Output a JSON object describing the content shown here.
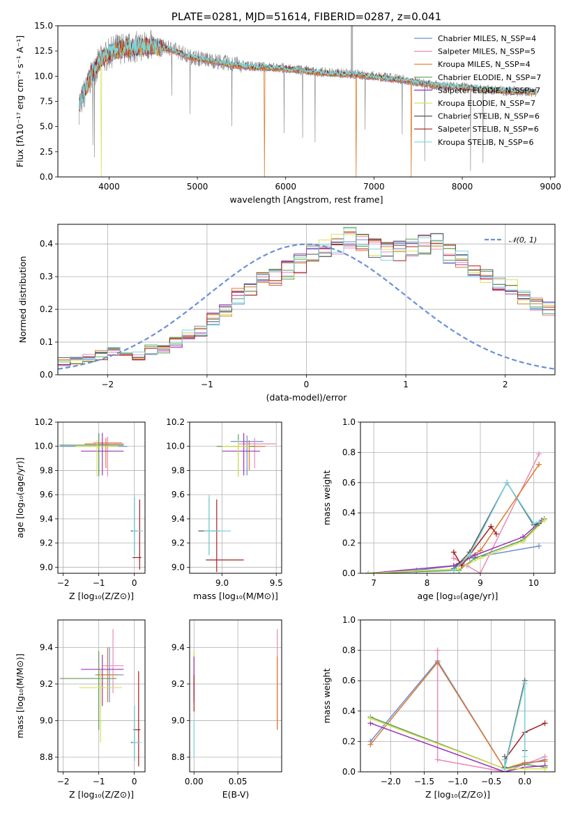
{
  "chart_data": [
    {
      "id": "spectrum",
      "type": "line",
      "title": "PLATE=0281, MJD=51614, FIBERID=0287, z=0.041",
      "xlabel": "wavelength [Angstrom, rest frame]",
      "ylabel": "Flux [fλ10⁻¹⁷ erg cm⁻² s⁻¹ A⁻¹]",
      "xlim": [
        3420,
        9050
      ],
      "ylim": [
        0,
        15
      ],
      "xticks": [
        4000,
        5000,
        6000,
        7000,
        8000,
        9000
      ],
      "yticks": [
        0.0,
        2.5,
        5.0,
        7.5,
        10.0,
        12.5,
        15.0
      ],
      "grid": false,
      "legend": "right",
      "observed": {
        "x": [
          3650,
          3700,
          3800,
          3900,
          4000,
          4100,
          4200,
          4300,
          4400,
          4500,
          4600,
          4700,
          4800,
          4900,
          5000,
          5200,
          5400,
          5600,
          5800,
          6000,
          6200,
          6400,
          6600,
          6800,
          7000,
          7200,
          7400,
          7600,
          7800,
          8000,
          8200,
          8400,
          8600,
          8800
        ],
        "y": [
          6.5,
          7.8,
          10.0,
          11.5,
          12.2,
          12.8,
          12.7,
          12.9,
          13.0,
          13.0,
          12.9,
          12.7,
          12.4,
          12.0,
          11.8,
          11.5,
          11.2,
          11.0,
          10.9,
          10.8,
          10.6,
          10.4,
          10.3,
          10.2,
          10.0,
          9.8,
          9.6,
          9.2,
          9.0,
          8.9,
          8.7,
          8.6,
          8.5,
          8.4
        ]
      },
      "series": [
        {
          "name": "Chabrier MILES, N_SSP=4",
          "color": "#6b8bd6"
        },
        {
          "name": "Salpeter MILES, N_SSP=5",
          "color": "#e88ab9"
        },
        {
          "name": "Kroupa MILES, N_SSP=4",
          "color": "#dc7a2a"
        },
        {
          "name": "Chabrier ELODIE, N_SSP=7",
          "color": "#5f9a55"
        },
        {
          "name": "Salpeter ELODIE, N_SSP=7",
          "color": "#9b33b8"
        },
        {
          "name": "Kroupa ELODIE, N_SSP=7",
          "color": "#d8e257"
        },
        {
          "name": "Chabrier STELIB, N_SSP=6",
          "color": "#555555"
        },
        {
          "name": "Salpeter STELIB, N_SSP=6",
          "color": "#a61d1d"
        },
        {
          "name": "Kroupa STELIB, N_SSP=6",
          "color": "#7bd6de"
        }
      ],
      "model": {
        "x": [
          3650,
          3700,
          3800,
          3900,
          4000,
          4100,
          4200,
          4300,
          4400,
          4500,
          4600,
          4700,
          4800,
          4900,
          5000,
          5200,
          5400,
          5600,
          5800,
          6000,
          6200,
          6400,
          6600,
          6800,
          7000,
          7200,
          7400,
          7600,
          7800,
          8000,
          8200,
          8400,
          8600,
          8800
        ],
        "y": [
          6.8,
          8.0,
          10.2,
          11.6,
          12.3,
          12.6,
          12.7,
          12.8,
          12.9,
          12.9,
          12.8,
          12.6,
          12.3,
          11.9,
          11.7,
          11.4,
          11.1,
          10.9,
          10.8,
          10.7,
          10.5,
          10.3,
          10.2,
          10.1,
          9.9,
          9.7,
          9.5,
          9.2,
          9.0,
          8.9,
          8.7,
          8.6,
          8.5,
          8.4
        ]
      }
    },
    {
      "id": "residuals",
      "type": "line",
      "xlabel": "(data-model)/error",
      "ylabel": "Normed distribution",
      "xlim": [
        -2.5,
        2.5
      ],
      "ylim": [
        0,
        0.46
      ],
      "xticks": [
        -2,
        -1,
        0,
        1,
        2
      ],
      "yticks": [
        0.0,
        0.1,
        0.2,
        0.3,
        0.4
      ],
      "grid": true,
      "legend": "top-right",
      "gaussian_label": "𝒩(0, 1)",
      "histogram": {
        "bin_width": 0.125,
        "x_start": -2.5,
        "values": [
          0.04,
          0.04,
          0.055,
          0.06,
          0.07,
          0.07,
          0.06,
          0.075,
          0.08,
          0.1,
          0.125,
          0.13,
          0.17,
          0.2,
          0.24,
          0.26,
          0.29,
          0.3,
          0.32,
          0.34,
          0.37,
          0.39,
          0.4,
          0.42,
          0.4,
          0.39,
          0.38,
          0.38,
          0.39,
          0.4,
          0.4,
          0.37,
          0.35,
          0.32,
          0.3,
          0.28,
          0.27,
          0.24,
          0.22,
          0.2,
          0.21,
          0.19,
          0.17,
          0.14,
          0.13,
          0.11,
          0.09,
          0.08,
          0.065,
          0.055,
          0.05,
          0.045,
          0.04,
          0.04
        ]
      }
    },
    {
      "id": "age-vs-Z",
      "type": "scatter",
      "xlabel": "Z [log₁₀(Z/Z⊙)]",
      "ylabel": "age  [log₁₀(age/yr)]",
      "xlim": [
        -2.15,
        0.3
      ],
      "ylim": [
        8.95,
        10.2
      ],
      "xticks": [
        -2,
        -1,
        0
      ],
      "yticks": [
        9.0,
        9.2,
        9.4,
        9.6,
        9.8,
        10.0,
        10.2
      ],
      "grid": true,
      "points": [
        {
          "x": -1.0,
          "y": 10.0,
          "xerr": [
            1.1,
            0.8
          ],
          "yerr": [
            0.25,
            0.1
          ],
          "s": 0
        },
        {
          "x": -0.75,
          "y": 10.03,
          "xerr": [
            0.4,
            0.4
          ],
          "yerr": [
            0.28,
            0.05
          ],
          "s": 1
        },
        {
          "x": -0.8,
          "y": 10.02,
          "xerr": [
            0.6,
            0.5
          ],
          "yerr": [
            0.2,
            0.05
          ],
          "s": 2
        },
        {
          "x": -1.0,
          "y": 10.01,
          "xerr": [
            1.1,
            0.7
          ],
          "yerr": [
            0.25,
            0.1
          ],
          "s": 3
        },
        {
          "x": -0.9,
          "y": 9.96,
          "xerr": [
            0.6,
            0.6
          ],
          "yerr": [
            0.2,
            0.15
          ],
          "s": 4
        },
        {
          "x": -1.05,
          "y": 10.0,
          "xerr": [
            0.6,
            0.6
          ],
          "yerr": [
            0.25,
            0.05
          ],
          "s": 5
        },
        {
          "x": 0.0,
          "y": 9.3,
          "xerr": [
            0.1,
            0.1
          ],
          "yerr": [
            0.2,
            0.28
          ],
          "s": 6
        },
        {
          "x": 0.15,
          "y": 9.08,
          "xerr": [
            0.2,
            0.05
          ],
          "yerr": [
            0.1,
            0.48
          ],
          "s": 7
        },
        {
          "x": 0.0,
          "y": 9.3,
          "xerr": [
            0.05,
            0.25
          ],
          "yerr": [
            0.2,
            0.3
          ],
          "s": 8
        }
      ]
    },
    {
      "id": "age-vs-mass",
      "type": "scatter",
      "xlabel": "mass [log₁₀(M/M⊙)]",
      "ylabel": "",
      "xlim": [
        8.7,
        9.55
      ],
      "ylim": [
        8.95,
        10.2
      ],
      "xticks": [
        9.0,
        9.5
      ],
      "yticks": [
        9.0,
        9.2,
        9.4,
        9.6,
        9.8,
        10.0,
        10.2
      ],
      "grid": true,
      "points": [
        {
          "x": 9.23,
          "y": 10.04,
          "xerr": [
            0.15,
            0.15
          ],
          "yerr": [
            0.28,
            0.05
          ],
          "s": 0
        },
        {
          "x": 9.3,
          "y": 10.02,
          "xerr": [
            0.15,
            0.2
          ],
          "yerr": [
            0.2,
            0.05
          ],
          "s": 1
        },
        {
          "x": 9.25,
          "y": 10.0,
          "xerr": [
            0.15,
            0.15
          ],
          "yerr": [
            0.2,
            0.05
          ],
          "s": 2
        },
        {
          "x": 9.15,
          "y": 10.0,
          "xerr": [
            0.2,
            0.15
          ],
          "yerr": [
            0.25,
            0.1
          ],
          "s": 3
        },
        {
          "x": 9.2,
          "y": 9.96,
          "xerr": [
            0.2,
            0.15
          ],
          "yerr": [
            0.2,
            0.15
          ],
          "s": 4
        },
        {
          "x": 9.15,
          "y": 10.0,
          "xerr": [
            0.15,
            0.1
          ],
          "yerr": [
            0.25,
            0.05
          ],
          "s": 5
        },
        {
          "x": 8.88,
          "y": 9.3,
          "xerr": [
            0.1,
            0.1
          ],
          "yerr": [
            0.2,
            0.28
          ],
          "s": 6
        },
        {
          "x": 8.95,
          "y": 9.06,
          "xerr": [
            0.1,
            0.25
          ],
          "yerr": [
            0.1,
            0.5
          ],
          "s": 7
        },
        {
          "x": 8.88,
          "y": 9.3,
          "xerr": [
            0.05,
            0.2
          ],
          "yerr": [
            0.2,
            0.3
          ],
          "s": 8
        }
      ]
    },
    {
      "id": "weight-vs-age",
      "type": "line",
      "xlabel": "age  [log₁₀(age/yr)]",
      "ylabel": "mass weight",
      "xlim": [
        6.75,
        10.4
      ],
      "ylim": [
        0,
        1
      ],
      "xticks": [
        7,
        8,
        9,
        10
      ],
      "yticks": [
        0.0,
        0.2,
        0.4,
        0.6,
        0.8,
        1.0
      ],
      "grid": true,
      "series": [
        {
          "s": 0,
          "x": [
            6.9,
            7.8,
            8.55,
            8.8,
            10.1
          ],
          "y": [
            0.0,
            0.02,
            0.05,
            0.1,
            0.18
          ]
        },
        {
          "s": 1,
          "x": [
            8.5,
            8.75,
            9.0,
            10.1
          ],
          "y": [
            0.1,
            0.05,
            0.0,
            0.79
          ]
        },
        {
          "s": 2,
          "x": [
            8.5,
            8.75,
            9.0,
            10.1
          ],
          "y": [
            0.05,
            0.1,
            0.15,
            0.72
          ]
        },
        {
          "s": 3,
          "x": [
            6.9,
            8.6,
            8.9,
            9.8,
            10.2
          ],
          "y": [
            0.0,
            0.02,
            0.1,
            0.22,
            0.36
          ]
        },
        {
          "s": 4,
          "x": [
            6.9,
            8.5,
            8.9,
            9.8,
            10.15
          ],
          "y": [
            0.0,
            0.05,
            0.12,
            0.24,
            0.35
          ]
        },
        {
          "s": 5,
          "x": [
            6.9,
            8.6,
            9.0,
            9.8,
            10.2
          ],
          "y": [
            0.0,
            0.03,
            0.1,
            0.21,
            0.35
          ]
        },
        {
          "s": 6,
          "x": [
            8.5,
            8.8,
            9.5,
            10.0,
            10.1
          ],
          "y": [
            0.03,
            0.14,
            0.6,
            0.32,
            0.33
          ]
        },
        {
          "s": 7,
          "x": [
            8.5,
            8.65,
            9.2,
            9.3
          ],
          "y": [
            0.14,
            0.05,
            0.31,
            0.26
          ]
        },
        {
          "s": 8,
          "x": [
            8.5,
            8.8,
            9.5,
            10.0,
            10.1
          ],
          "y": [
            0.02,
            0.12,
            0.6,
            0.33,
            0.34
          ]
        }
      ]
    },
    {
      "id": "mass-vs-Z",
      "type": "scatter",
      "xlabel": "Z [log₁₀(Z/Z⊙)]",
      "ylabel": "mass [log₁₀(M/M⊙)]",
      "xlim": [
        -2.15,
        0.3
      ],
      "ylim": [
        8.72,
        9.55
      ],
      "xticks": [
        -2,
        -1,
        0
      ],
      "yticks": [
        8.8,
        9.0,
        9.2,
        9.4
      ],
      "grid": true,
      "points": [
        {
          "x": -0.7,
          "y": 9.25,
          "xerr": [
            0.4,
            0.4
          ],
          "yerr": [
            0.15,
            0.15
          ],
          "s": 0
        },
        {
          "x": -0.6,
          "y": 9.3,
          "xerr": [
            0.3,
            0.3
          ],
          "yerr": [
            0.15,
            0.2
          ],
          "s": 1
        },
        {
          "x": -0.75,
          "y": 9.25,
          "xerr": [
            0.3,
            0.3
          ],
          "yerr": [
            0.15,
            0.15
          ],
          "s": 2
        },
        {
          "x": -1.0,
          "y": 9.23,
          "xerr": [
            1.1,
            0.5
          ],
          "yerr": [
            0.28,
            0.15
          ],
          "s": 3
        },
        {
          "x": -0.9,
          "y": 9.28,
          "xerr": [
            0.6,
            0.6
          ],
          "yerr": [
            0.2,
            0.08
          ],
          "s": 4
        },
        {
          "x": -0.95,
          "y": 9.18,
          "xerr": [
            0.6,
            0.6
          ],
          "yerr": [
            0.3,
            0.1
          ],
          "s": 5
        },
        {
          "x": 0.0,
          "y": 8.88,
          "xerr": [
            0.1,
            0.1
          ],
          "yerr": [
            0.1,
            0.2
          ],
          "s": 6
        },
        {
          "x": 0.12,
          "y": 8.95,
          "xerr": [
            0.15,
            0.05
          ],
          "yerr": [
            0.2,
            0.32
          ],
          "s": 7
        },
        {
          "x": 0.0,
          "y": 8.88,
          "xerr": [
            0.05,
            0.2
          ],
          "yerr": [
            0.1,
            0.2
          ],
          "s": 8
        }
      ]
    },
    {
      "id": "mass-vs-EBV",
      "type": "scatter",
      "xlabel": "E(B-V)",
      "ylabel": "",
      "xlim": [
        -0.005,
        0.1
      ],
      "ylim": [
        8.72,
        9.55
      ],
      "xticks": [
        0.0,
        0.05
      ],
      "yticks": [
        8.8,
        9.0,
        9.2,
        9.4
      ],
      "grid": true,
      "points": [
        {
          "x": 0.0,
          "y": 9.25,
          "yerr": [
            0.1,
            0.12
          ],
          "s": 0
        },
        {
          "x": 0.0,
          "y": 9.3,
          "yerr": [
            0.1,
            0.08
          ],
          "s": 5
        },
        {
          "x": 0.0,
          "y": 9.25,
          "yerr": [
            0.15,
            0.1
          ],
          "s": 4
        },
        {
          "x": 0.0,
          "y": 9.15,
          "yerr": [
            0.1,
            0.1
          ],
          "s": 7
        },
        {
          "x": 0.0,
          "y": 8.9,
          "yerr": [
            0.1,
            0.1
          ],
          "s": 8
        },
        {
          "x": 0.095,
          "y": 9.2,
          "yerr": [
            0.25,
            0.3
          ],
          "s": 1
        },
        {
          "x": 0.095,
          "y": 9.15,
          "yerr": [
            0.2,
            0.2
          ],
          "s": 2
        }
      ]
    },
    {
      "id": "weight-vs-Z",
      "type": "line",
      "xlabel": "Z [log₁₀(Z/Z⊙)]",
      "ylabel": "mass weight",
      "xlim": [
        -2.45,
        0.45
      ],
      "ylim": [
        0,
        1
      ],
      "xticks": [
        -2.0,
        -1.5,
        -1.0,
        -0.5,
        0.0
      ],
      "yticks": [
        0.0,
        0.2,
        0.4,
        0.6,
        0.8,
        1.0
      ],
      "grid": true,
      "series": [
        {
          "s": 0,
          "x": [
            -2.3,
            -1.3,
            -0.3,
            0.0,
            0.3
          ],
          "y": [
            0.2,
            0.73,
            0.02,
            0.05,
            0.08
          ]
        },
        {
          "s": 1,
          "x": [
            -1.3,
            -1.3,
            -0.3,
            0.0,
            0.3
          ],
          "y": [
            0.8,
            0.08,
            0.0,
            0.05,
            0.1
          ]
        },
        {
          "s": 2,
          "x": [
            -2.3,
            -1.3,
            -0.3,
            0.0,
            0.3
          ],
          "y": [
            0.18,
            0.72,
            0.02,
            0.06,
            0.07
          ]
        },
        {
          "s": 3,
          "x": [
            -2.3,
            -0.3,
            0.0,
            0.3
          ],
          "y": [
            0.36,
            0.02,
            0.05,
            0.03
          ]
        },
        {
          "s": 4,
          "x": [
            -2.3,
            -0.3,
            0.0,
            0.3
          ],
          "y": [
            0.32,
            0.0,
            0.03,
            0.04
          ]
        },
        {
          "s": 5,
          "x": [
            -2.3,
            -0.3,
            0.0,
            0.3
          ],
          "y": [
            0.35,
            0.02,
            0.02,
            0.02
          ]
        },
        {
          "s": 6,
          "x": [
            -0.3,
            -0.3,
            0.0,
            0.0
          ],
          "y": [
            0.1,
            0.03,
            0.6,
            0.14
          ]
        },
        {
          "s": 7,
          "x": [
            -0.3,
            0.0,
            0.3
          ],
          "y": [
            0.08,
            0.26,
            0.32
          ]
        },
        {
          "s": 8,
          "x": [
            -0.3,
            -0.3,
            0.0,
            0.0
          ],
          "y": [
            0.08,
            0.02,
            0.58,
            0.1
          ]
        }
      ]
    }
  ]
}
